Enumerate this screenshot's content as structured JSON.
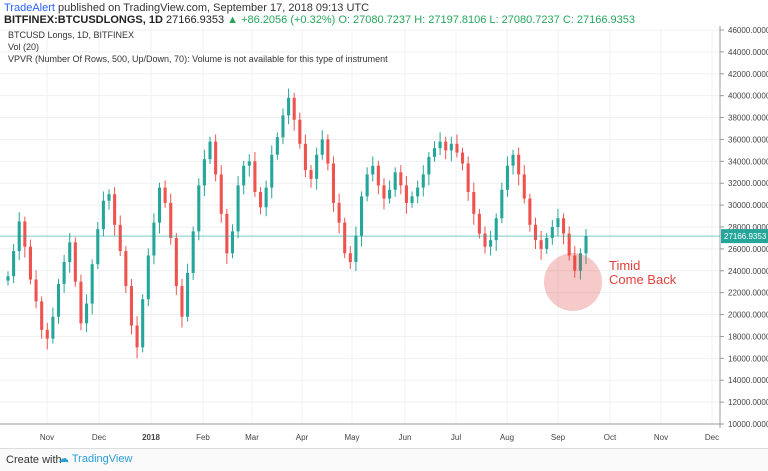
{
  "header": {
    "author": "TradeAlert",
    "published_text": " published on TradingView.com, September 17, 2018 09:13 UTC",
    "symbol": "BITFINEX:BTCUSDLONGS, 1D",
    "last": "27166.9353",
    "change": "▲ +86.2056 (+0.32%)",
    "ohlc": "O: 27080.7237  H: 27197.8106  L: 27080.7237  C: 27166.9353"
  },
  "legend": {
    "title": "BTCUSD Longs, 1D, BITFINEX",
    "vol": "Vol (20)",
    "vpvr": "VPVR (Number Of Rows, 500, Up/Down, 70): Volume is not available for this type of instrument"
  },
  "annotation": {
    "text_line1": "Timid",
    "text_line2": "Come Back",
    "color": "#e0413b"
  },
  "footer": {
    "made_with": "Create with",
    "brand": "TradingView"
  },
  "colors": {
    "up": "#26a69a",
    "down": "#ef5350",
    "grid": "#eef0f3",
    "last_price": "#26a69a"
  },
  "chart_data": {
    "type": "candlestick",
    "title": "BTCUSD Longs, 1D, BITFINEX",
    "x_ticks": [
      "Nov",
      "Dec",
      "2018",
      "Feb",
      "Mar",
      "Apr",
      "May",
      "Jun",
      "Jul",
      "Aug",
      "Sep",
      "Oct",
      "Nov",
      "Dec"
    ],
    "y_ticks": [
      "46000.0000",
      "44000.0000",
      "42000.0000",
      "40000.0000",
      "38000.0000",
      "36000.0000",
      "34000.0000",
      "32000.0000",
      "30000.0000",
      "28000.0000",
      "26000.0000",
      "24000.0000",
      "22000.0000",
      "20000.0000",
      "18000.0000",
      "16000.0000",
      "14000.0000",
      "12000.0000",
      "10000.0000"
    ],
    "ylim": [
      10000,
      46000
    ],
    "last_price": 27166.9353,
    "last_price_label": "27166.9353",
    "series_close": [
      23500,
      25800,
      28500,
      26200,
      23200,
      21200,
      18600,
      17800,
      19800,
      22800,
      24800,
      26600,
      23000,
      19200,
      21000,
      24600,
      27800,
      30400,
      31000,
      28200,
      25800,
      22600,
      19000,
      17000,
      21400,
      25400,
      28400,
      31600,
      30200,
      27000,
      22600,
      19800,
      23800,
      27600,
      31800,
      34200,
      35800,
      32800,
      29200,
      25600,
      27600,
      31800,
      33600,
      34000,
      31200,
      29800,
      31600,
      34600,
      36200,
      38200,
      39800,
      37800,
      35600,
      33200,
      32400,
      34600,
      36000,
      33800,
      30200,
      28400,
      25600,
      24800,
      27200,
      30800,
      32800,
      33600,
      31800,
      30600,
      31400,
      33000,
      31800,
      30200,
      30800,
      31600,
      32800,
      34400,
      35200,
      35800,
      35000,
      35600,
      34800,
      33800,
      31200,
      29200,
      27400,
      26200,
      26800,
      28800,
      31400,
      33600,
      34600,
      32800,
      30600,
      28200,
      26800,
      26000,
      27000,
      28000,
      28800,
      27400,
      25400,
      24000,
      25600,
      27166.9353
    ]
  }
}
